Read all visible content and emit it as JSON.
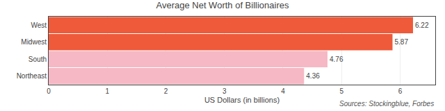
{
  "chart_data": {
    "type": "bar",
    "orientation": "horizontal",
    "title": "Average Net Worth of Billionaires",
    "xlabel": "US Dollars (in billions)",
    "categories": [
      "Northeast",
      "South",
      "Midwest",
      "West"
    ],
    "values": [
      4.36,
      4.76,
      5.87,
      6.22
    ],
    "colors": [
      "#f5b8c4",
      "#f5b8c4",
      "#ee5a3a",
      "#ee5a3a"
    ],
    "xlim": [
      0,
      6.6
    ],
    "xticks": [
      0,
      1,
      2,
      3,
      4,
      5,
      6
    ],
    "grid": true,
    "data_labels": true,
    "annotations": [
      "Sources: Stockingblue, Forbes"
    ]
  }
}
